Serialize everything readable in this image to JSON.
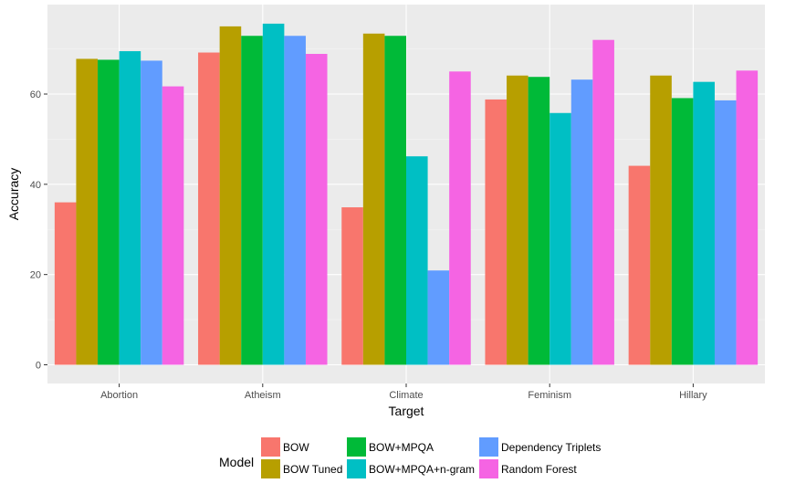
{
  "chart_data": {
    "type": "bar",
    "title": "",
    "xlabel": "Target",
    "ylabel": "Accuracy",
    "ylim": [
      0,
      80
    ],
    "y_ticks": [
      0,
      20,
      40,
      60
    ],
    "grid": true,
    "legend_title": "Model",
    "legend_position": "bottom",
    "categories": [
      "Abortion",
      "Atheism",
      "Climate",
      "Feminism",
      "Hillary"
    ],
    "series": [
      {
        "name": "BOW",
        "color": "#F8766D",
        "values": [
          36.0,
          69.2,
          34.9,
          58.8,
          44.1
        ]
      },
      {
        "name": "BOW Tuned",
        "color": "#B79F00",
        "values": [
          67.8,
          75.0,
          73.4,
          64.1,
          64.1
        ]
      },
      {
        "name": "BOW+MPQA",
        "color": "#00BA38",
        "values": [
          67.6,
          72.9,
          72.9,
          63.8,
          59.1
        ]
      },
      {
        "name": "BOW+MPQA+n-gram",
        "color": "#00BFC4",
        "values": [
          69.5,
          75.6,
          46.2,
          55.8,
          62.7
        ]
      },
      {
        "name": "Dependency Triplets",
        "color": "#619CFF",
        "values": [
          67.4,
          72.9,
          20.9,
          63.2,
          58.6
        ]
      },
      {
        "name": "Random Forest",
        "color": "#F564E3",
        "values": [
          61.7,
          68.9,
          65.0,
          72.0,
          65.2
        ]
      }
    ]
  }
}
